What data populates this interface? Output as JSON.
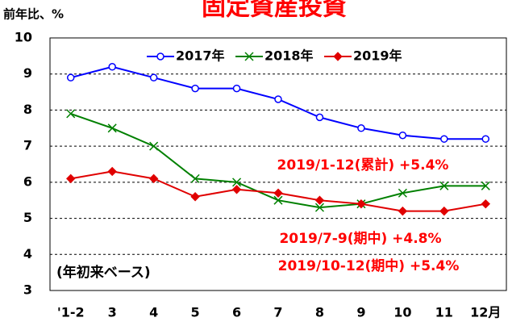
{
  "chart_data": {
    "type": "line",
    "title": "固定資産投資",
    "y_label": "前年比、%",
    "categories": [
      "'1-2",
      "3",
      "4",
      "5",
      "6",
      "7",
      "8",
      "9",
      "10",
      "11",
      "12月"
    ],
    "series": [
      {
        "name": "2017年",
        "color": "#0000ff",
        "marker": "circle",
        "values": [
          8.9,
          9.2,
          8.9,
          8.6,
          8.6,
          8.3,
          7.8,
          7.5,
          7.3,
          7.2,
          7.2
        ]
      },
      {
        "name": "2018年",
        "color": "#008000",
        "marker": "x",
        "values": [
          7.9,
          7.5,
          7.0,
          6.1,
          6.0,
          5.5,
          5.3,
          5.4,
          5.7,
          5.9,
          5.9
        ]
      },
      {
        "name": "2019年",
        "color": "#e00000",
        "marker": "diamond",
        "values": [
          6.1,
          6.3,
          6.1,
          5.6,
          5.8,
          5.7,
          5.5,
          5.4,
          5.2,
          5.2,
          5.4
        ]
      }
    ],
    "ylim": [
      3,
      10
    ],
    "yticks": [
      3,
      4,
      5,
      6,
      7,
      8,
      9,
      10
    ],
    "grid": true,
    "legend": "top",
    "annotations": [
      "2019/1-12(累計)  +5.4%",
      "2019/7-9(期中)  +4.8%",
      "2019/10-12(期中)  +5.4%",
      "(年初来ベース)"
    ]
  }
}
